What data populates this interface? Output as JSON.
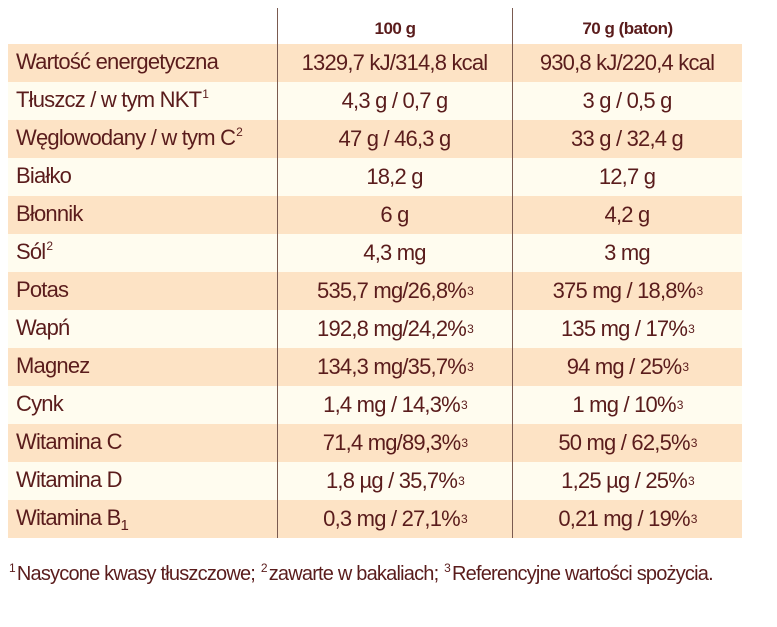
{
  "table": {
    "headers": [
      "",
      "100 g",
      "70 g (baton)"
    ],
    "rows": [
      {
        "label": "Wartość energetyczna",
        "label_sup": "",
        "label_sub": "",
        "v100": "1329,7 kJ/314,8 kcal",
        "v100_sup": "",
        "v70": "930,8 kJ/220,4 kcal",
        "v70_sup": ""
      },
      {
        "label": "Tłuszcz / w tym NKT",
        "label_sup": "1",
        "label_sub": "",
        "v100": "4,3 g / 0,7 g",
        "v100_sup": "",
        "v70": "3 g / 0,5 g",
        "v70_sup": ""
      },
      {
        "label": "Węglowodany / w tym C",
        "label_sup": "2",
        "label_sub": "",
        "v100": "47 g / 46,3 g",
        "v100_sup": "",
        "v70": "33 g / 32,4 g",
        "v70_sup": ""
      },
      {
        "label": "Białko",
        "label_sup": "",
        "label_sub": "",
        "v100": "18,2 g",
        "v100_sup": "",
        "v70": "12,7 g",
        "v70_sup": ""
      },
      {
        "label": "Błonnik",
        "label_sup": "",
        "label_sub": "",
        "v100": "6 g",
        "v100_sup": "",
        "v70": "4,2 g",
        "v70_sup": ""
      },
      {
        "label": "Sól",
        "label_sup": "2",
        "label_sub": "",
        "v100": "4,3 mg",
        "v100_sup": "",
        "v70": "3 mg",
        "v70_sup": ""
      },
      {
        "label": "Potas",
        "label_sup": "",
        "label_sub": "",
        "v100": "535,7 mg/26,8%",
        "v100_sup": "3",
        "v70": "375 mg / 18,8%",
        "v70_sup": "3"
      },
      {
        "label": "Wapń",
        "label_sup": "",
        "label_sub": "",
        "v100": "192,8 mg/24,2%",
        "v100_sup": "3",
        "v70": "135 mg / 17%",
        "v70_sup": "3"
      },
      {
        "label": "Magnez",
        "label_sup": "",
        "label_sub": "",
        "v100": "134,3 mg/35,7%",
        "v100_sup": "3",
        "v70": "94 mg / 25%",
        "v70_sup": "3"
      },
      {
        "label": "Cynk",
        "label_sup": "",
        "label_sub": "",
        "v100": "1,4 mg / 14,3%",
        "v100_sup": "3",
        "v70": "1 mg / 10%",
        "v70_sup": "3"
      },
      {
        "label": "Witamina C",
        "label_sup": "",
        "label_sub": "",
        "v100": "71,4 mg/89,3%",
        "v100_sup": "3",
        "v70": "50 mg / 62,5%",
        "v70_sup": "3"
      },
      {
        "label": "Witamina D",
        "label_sup": "",
        "label_sub": "",
        "v100": "1,8  µg / 35,7%",
        "v100_sup": "3",
        "v70": "1,25 µg / 25%",
        "v70_sup": "3"
      },
      {
        "label": "Witamina B",
        "label_sup": "",
        "label_sub": "1",
        "v100": "0,3 mg / 27,1%",
        "v100_sup": "3",
        "v70": "0,21 mg / 19%",
        "v70_sup": "3"
      }
    ]
  },
  "footnote": {
    "items": [
      {
        "sup": "1",
        "text": "Nasycone kwasy tłuszczowe; "
      },
      {
        "sup": "2",
        "text": "zawarte w bakaliach; "
      },
      {
        "sup": "3",
        "text": "Referencyjne wartości spożycia."
      }
    ]
  },
  "colors": {
    "text": "#5a1c1c",
    "row_odd": "#fde3c5",
    "row_even": "#fffcef",
    "divider": "#7a5a50"
  }
}
